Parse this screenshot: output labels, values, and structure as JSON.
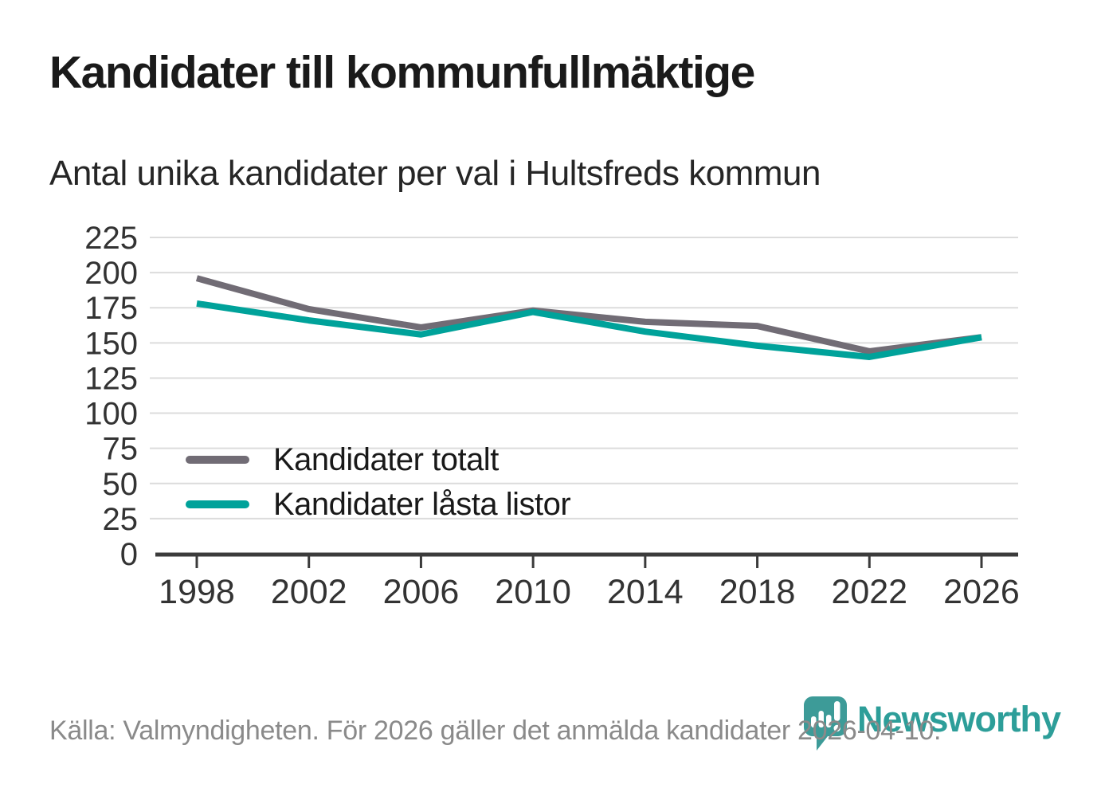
{
  "page": {
    "title": "Kandidater till kommunfullmäktige",
    "subtitle": "Antal unika kandidater per val i Hultsfreds kommun",
    "footer": "Källa: Valmyndigheten. För 2026 gäller det anmälda kandidater 2026-04-10.",
    "brand": "Newsworthy"
  },
  "colors": {
    "background": "#FFFFFF",
    "series_total": "#716C75",
    "series_locked": "#00A29A",
    "gridline": "#DCDCDC",
    "axis": "#3B3B3B",
    "tick_label": "#333333",
    "title_text": "#1A1A1A",
    "footer_text": "#8A8A8A",
    "logo_pin": "#3D9B98",
    "brand_text": "#2D9E99"
  },
  "legend": {
    "items": [
      {
        "label": "Kandidater totalt",
        "color": "#716C75"
      },
      {
        "label": "Kandidater låsta listor",
        "color": "#00A29A"
      }
    ]
  },
  "chart_data": {
    "type": "line",
    "title": "Kandidater till kommunfullmäktige",
    "subtitle": "Antal unika kandidater per val i Hultsfreds kommun",
    "categories": [
      "1998",
      "2002",
      "2006",
      "2010",
      "2014",
      "2018",
      "2022",
      "2026"
    ],
    "series": [
      {
        "name": "Kandidater totalt",
        "color": "#716C75",
        "values": [
          196,
          174,
          161,
          173,
          165,
          162,
          144,
          154
        ]
      },
      {
        "name": "Kandidater låsta listor",
        "color": "#00A29A",
        "values": [
          178,
          166,
          156,
          172,
          158,
          148,
          140,
          154
        ]
      }
    ],
    "xlabel": "",
    "ylabel": "",
    "ylim": [
      0,
      225
    ],
    "ytick_step": 25,
    "grid": true,
    "legend_position": "inside-bottom-left",
    "source": "Källa: Valmyndigheten. För 2026 gäller det anmälda kandidater 2026-04-10."
  }
}
